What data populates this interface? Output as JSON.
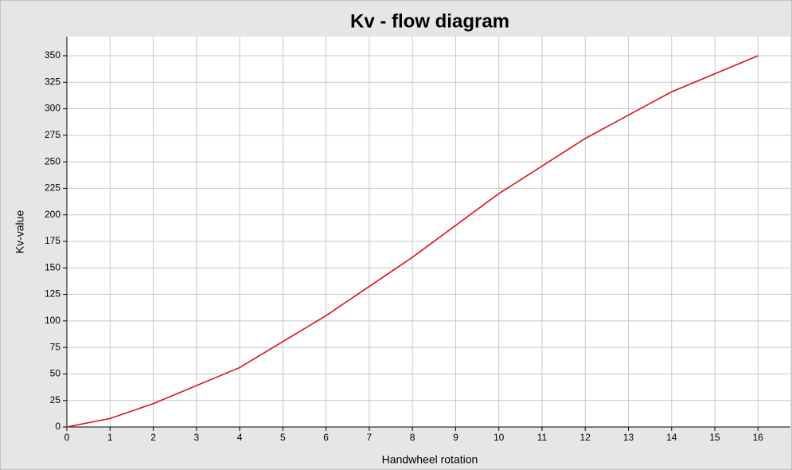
{
  "chart_data": {
    "type": "line",
    "title": "Kv - flow diagram",
    "x_label": "Handwheel rotation",
    "y_label": "Kv-value",
    "series": [
      {
        "name": "Kv",
        "color": "#e0101e",
        "x": [
          0,
          1,
          2,
          4,
          6,
          8,
          10,
          12,
          14,
          16
        ],
        "values": [
          0,
          8,
          22,
          56,
          105,
          160,
          220,
          272,
          316,
          350
        ]
      }
    ],
    "xlim": [
      0,
      16.75
    ],
    "xticks": [
      0,
      1,
      2,
      3,
      4,
      5,
      6,
      7,
      8,
      9,
      10,
      11,
      12,
      13,
      14,
      15,
      16
    ],
    "ylim": [
      0,
      368
    ],
    "yticks": [
      0,
      25,
      50,
      75,
      100,
      125,
      150,
      175,
      200,
      225,
      250,
      275,
      300,
      325,
      350
    ],
    "grid": true
  }
}
